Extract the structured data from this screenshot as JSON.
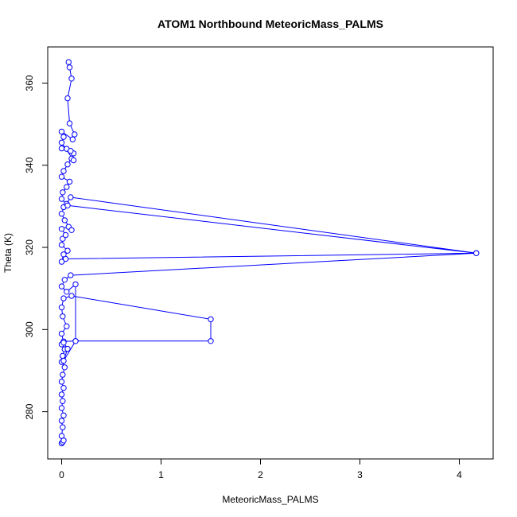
{
  "chart_data": {
    "type": "line",
    "title": "ATOM1 Northbound MeteoricMass_PALMS",
    "xlabel": "MeteoricMass_PALMS",
    "ylabel": "Theta (K)",
    "xlim": [
      -0.14,
      4.34
    ],
    "ylim": [
      268.5,
      368.8
    ],
    "x_ticks": [
      0,
      1,
      2,
      3,
      4
    ],
    "y_ticks": [
      280,
      300,
      320,
      340,
      360
    ],
    "color": "#0000ff",
    "marker": "open-circle",
    "grid": false,
    "legend": "none",
    "series": [
      {
        "points": [
          [
            0.0,
            272.3
          ],
          [
            0.01,
            272.6
          ],
          [
            0.02,
            273.0
          ],
          [
            0.0,
            274.1
          ],
          [
            0.01,
            276.2
          ],
          [
            0.0,
            277.8
          ],
          [
            0.02,
            279.1
          ],
          [
            0.0,
            280.9
          ],
          [
            0.01,
            282.6
          ],
          [
            0.0,
            284.2
          ],
          [
            0.02,
            285.8
          ],
          [
            0.0,
            287.3
          ],
          [
            0.01,
            289.0
          ],
          [
            0.03,
            290.8
          ],
          [
            0.0,
            292.1
          ],
          [
            0.01,
            293.6
          ],
          [
            0.03,
            295.2
          ],
          [
            0.0,
            296.4
          ],
          [
            0.02,
            297.1
          ],
          [
            0.14,
            297.2
          ],
          [
            1.5,
            297.2
          ],
          [
            1.5,
            302.5
          ],
          [
            0.1,
            308.2
          ],
          [
            0.02,
            307.6
          ],
          [
            0.0,
            305.4
          ],
          [
            0.01,
            303.2
          ],
          [
            0.05,
            300.8
          ],
          [
            0.0,
            299.0
          ],
          [
            0.02,
            296.8
          ],
          [
            0.06,
            295.3
          ],
          [
            0.02,
            292.4
          ],
          [
            0.14,
            297.2
          ],
          [
            0.14,
            311.0
          ],
          [
            0.05,
            309.2
          ],
          [
            0.0,
            310.5
          ],
          [
            0.03,
            312.1
          ],
          [
            0.09,
            313.2
          ],
          [
            4.17,
            318.6
          ],
          [
            0.04,
            317.2
          ],
          [
            0.0,
            316.5
          ],
          [
            0.02,
            318.3
          ],
          [
            0.06,
            319.2
          ],
          [
            0.0,
            320.6
          ],
          [
            0.01,
            322.1
          ],
          [
            0.04,
            323.0
          ],
          [
            0.0,
            324.5
          ],
          [
            0.07,
            325.0
          ],
          [
            0.1,
            324.2
          ],
          [
            0.03,
            326.6
          ],
          [
            0.0,
            328.2
          ],
          [
            0.02,
            329.8
          ],
          [
            0.05,
            330.6
          ],
          [
            0.09,
            332.2
          ],
          [
            4.17,
            318.6
          ],
          [
            0.06,
            330.2
          ],
          [
            0.0,
            331.8
          ],
          [
            0.01,
            333.4
          ],
          [
            0.05,
            334.7
          ],
          [
            0.08,
            336.0
          ],
          [
            0.0,
            337.2
          ],
          [
            0.02,
            338.6
          ],
          [
            0.06,
            340.2
          ],
          [
            0.1,
            341.6
          ],
          [
            0.12,
            342.9
          ],
          [
            0.0,
            344.1
          ],
          [
            0.05,
            344.0
          ],
          [
            0.09,
            343.5
          ],
          [
            0.12,
            341.2
          ],
          [
            0.0,
            345.5
          ],
          [
            0.02,
            346.9
          ],
          [
            0.0,
            348.2
          ],
          [
            0.11,
            346.3
          ],
          [
            0.13,
            347.5
          ],
          [
            0.08,
            350.2
          ],
          [
            0.06,
            356.3
          ],
          [
            0.1,
            361.1
          ],
          [
            0.08,
            363.8
          ],
          [
            0.07,
            365.1
          ]
        ]
      }
    ]
  }
}
